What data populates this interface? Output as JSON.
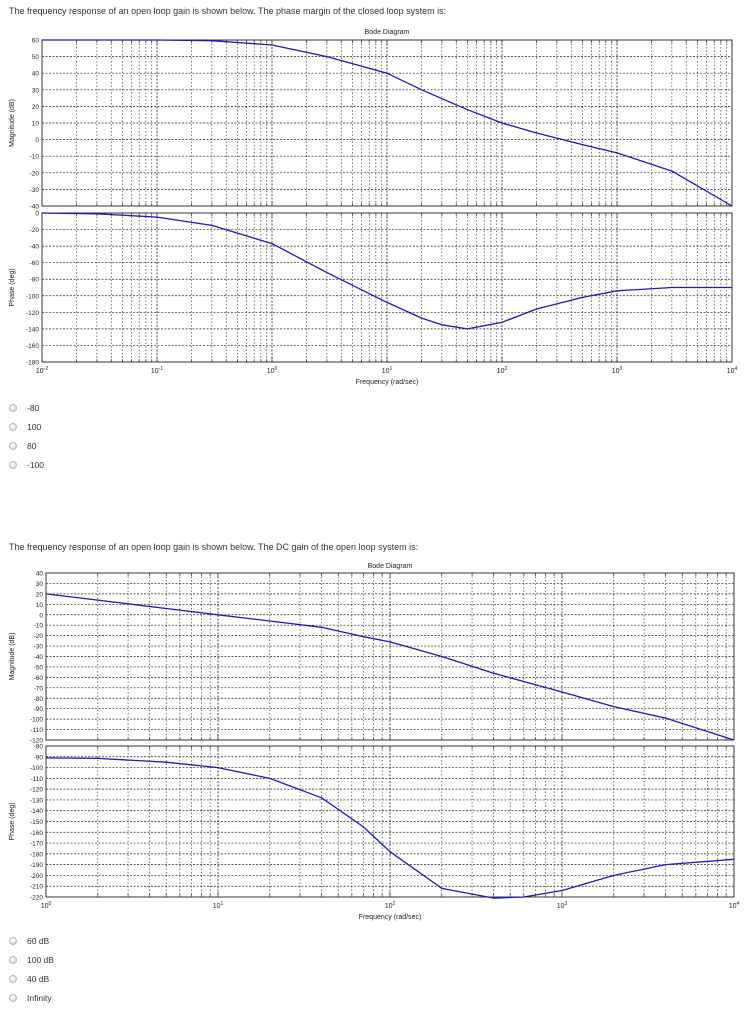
{
  "questions": [
    {
      "prompt": "The frequency response of an open loop gain is shown below. The phase margin of the closed loop system is:",
      "options": [
        "-80",
        "100",
        "80",
        "-100"
      ]
    },
    {
      "prompt": "The frequency response of an open loop gain is shown below. The DC gain of the open loop system is:",
      "options": [
        "60 dB",
        "100 dB",
        "40 dB",
        "Infinity"
      ]
    }
  ],
  "colors": {
    "curve": "#1a1ab4",
    "grid": "#222222",
    "axis": "#333333"
  },
  "chart_data": [
    {
      "type": "line",
      "title": "Bode Diagram",
      "xlabel": "Frequency (rad/sec)",
      "xscale": "log",
      "xlim": [
        0.01,
        10000
      ],
      "x_tick_labels": [
        "10^-2",
        "10^-1",
        "10^0",
        "10^1",
        "10^2",
        "10^3",
        "10^4"
      ],
      "grid": true,
      "subplots": [
        {
          "ylabel": "Magnitude (dB)",
          "ylim": [
            -40,
            60
          ],
          "y_ticks": [
            60,
            50,
            40,
            30,
            20,
            10,
            0,
            -10,
            -20,
            -30,
            -40
          ],
          "series": [
            {
              "name": "magnitude",
              "x": [
                0.01,
                0.1,
                0.3,
                1,
                3,
                10,
                20,
                50,
                100,
                200,
                500,
                1000,
                3000,
                10000
              ],
              "values": [
                60,
                60,
                59.6,
                57,
                50,
                40,
                30,
                18,
                10,
                4,
                -3,
                -8,
                -19,
                -40
              ]
            }
          ]
        },
        {
          "ylabel": "Phase (deg)",
          "ylim": [
            -180,
            0
          ],
          "y_ticks": [
            0,
            -20,
            -40,
            -60,
            -80,
            -100,
            -120,
            -140,
            -160,
            -180
          ],
          "series": [
            {
              "name": "phase",
              "x": [
                0.01,
                0.03,
                0.1,
                0.3,
                1,
                3,
                10,
                20,
                30,
                50,
                100,
                200,
                500,
                1000,
                3000,
                10000
              ],
              "values": [
                0,
                -1,
                -5,
                -15,
                -37,
                -72,
                -108,
                -127,
                -135,
                -140,
                -132,
                -116,
                -102,
                -94,
                -90,
                -90
              ]
            }
          ]
        }
      ]
    },
    {
      "type": "line",
      "title": "Bode Diagram",
      "xlabel": "Frequency (rad/sec)",
      "xscale": "log",
      "xlim": [
        1,
        10000
      ],
      "x_tick_labels": [
        "10^0",
        "10^1",
        "10^2",
        "10^3",
        "10^4"
      ],
      "grid": true,
      "subplots": [
        {
          "ylabel": "Magnitude (dB)",
          "ylim": [
            -120,
            40
          ],
          "y_ticks": [
            40,
            30,
            20,
            10,
            0,
            -10,
            -20,
            -30,
            -40,
            -50,
            -60,
            -70,
            -80,
            -90,
            -100,
            -110,
            -120
          ],
          "series": [
            {
              "name": "magnitude",
              "x": [
                1,
                2,
                5,
                10,
                20,
                40,
                70,
                100,
                200,
                400,
                1000,
                2000,
                4000,
                10000
              ],
              "values": [
                20,
                14,
                6,
                0,
                -6,
                -12,
                -21,
                -26,
                -40,
                -56,
                -74,
                -88,
                -99,
                -120
              ]
            }
          ]
        },
        {
          "ylabel": "Phase (deg)",
          "ylim": [
            -220,
            -80
          ],
          "y_ticks": [
            -80,
            -90,
            -100,
            -110,
            -120,
            -130,
            -140,
            -150,
            -160,
            -170,
            -180,
            -190,
            -200,
            -210,
            -220
          ],
          "series": [
            {
              "name": "phase",
              "x": [
                1,
                2,
                5,
                10,
                20,
                40,
                70,
                100,
                200,
                400,
                600,
                1000,
                2000,
                4000,
                10000
              ],
              "values": [
                -91,
                -91.5,
                -95,
                -100,
                -110,
                -128,
                -155,
                -178,
                -212,
                -221,
                -220,
                -214,
                -200,
                -190,
                -185
              ]
            }
          ]
        }
      ]
    }
  ]
}
